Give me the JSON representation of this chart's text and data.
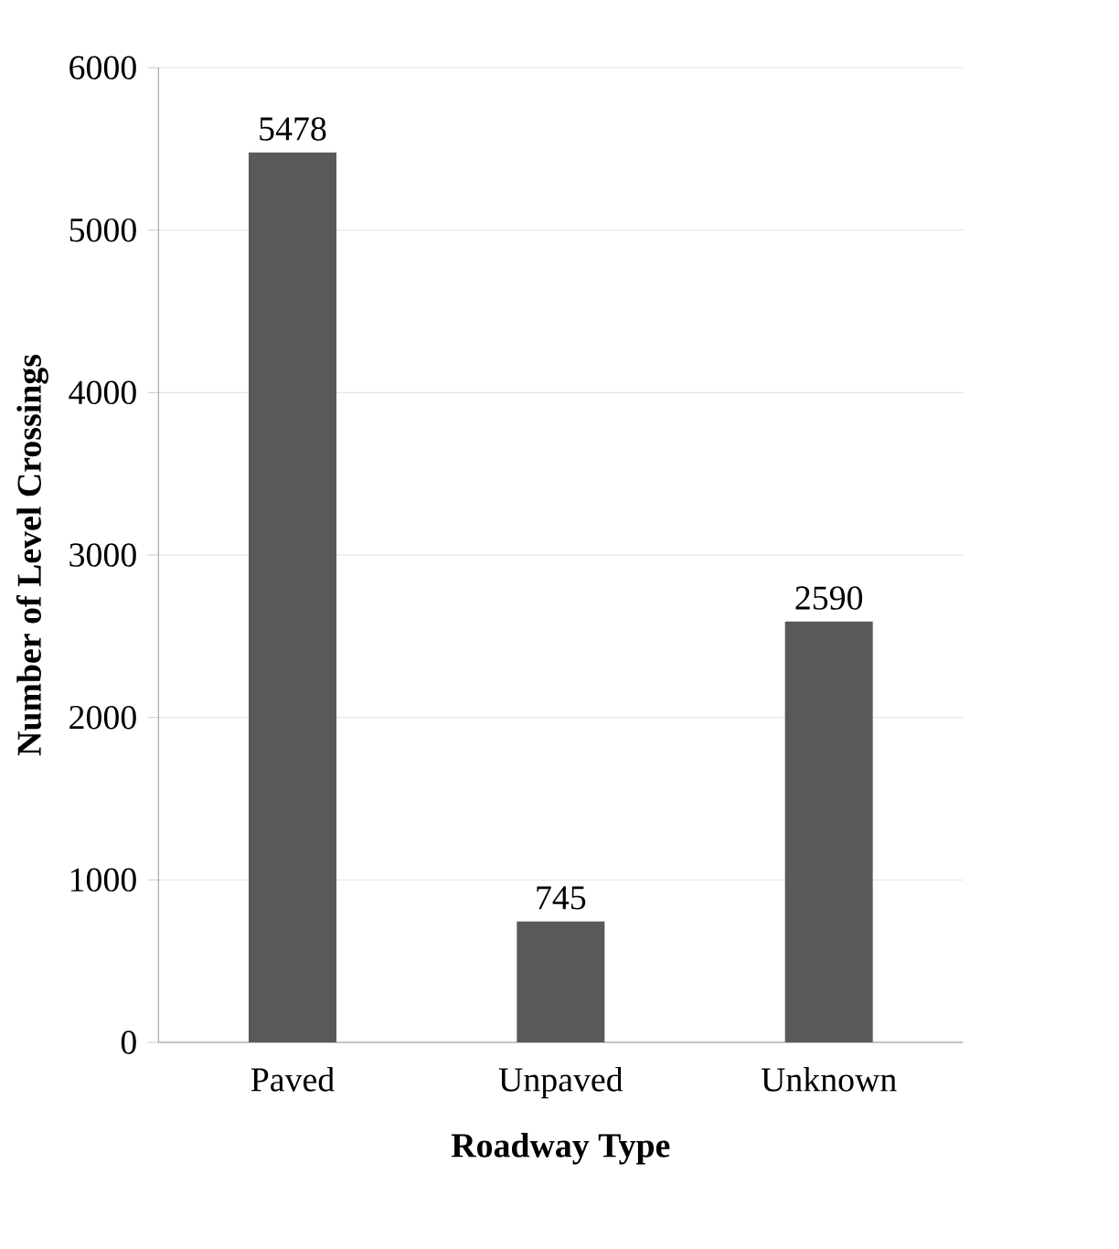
{
  "chart_data": {
    "type": "bar",
    "xlabel": "Roadway Type",
    "ylabel": "Number of Level Crossings",
    "categories": [
      "Paved",
      "Unpaved",
      "Unknown"
    ],
    "values": [
      5478,
      745,
      2590
    ],
    "color": "#595959",
    "ylim": [
      0,
      6000
    ],
    "yticks": [
      0,
      1000,
      2000,
      3000,
      4000,
      5000,
      6000
    ],
    "grid": "y",
    "data_labels": true
  }
}
